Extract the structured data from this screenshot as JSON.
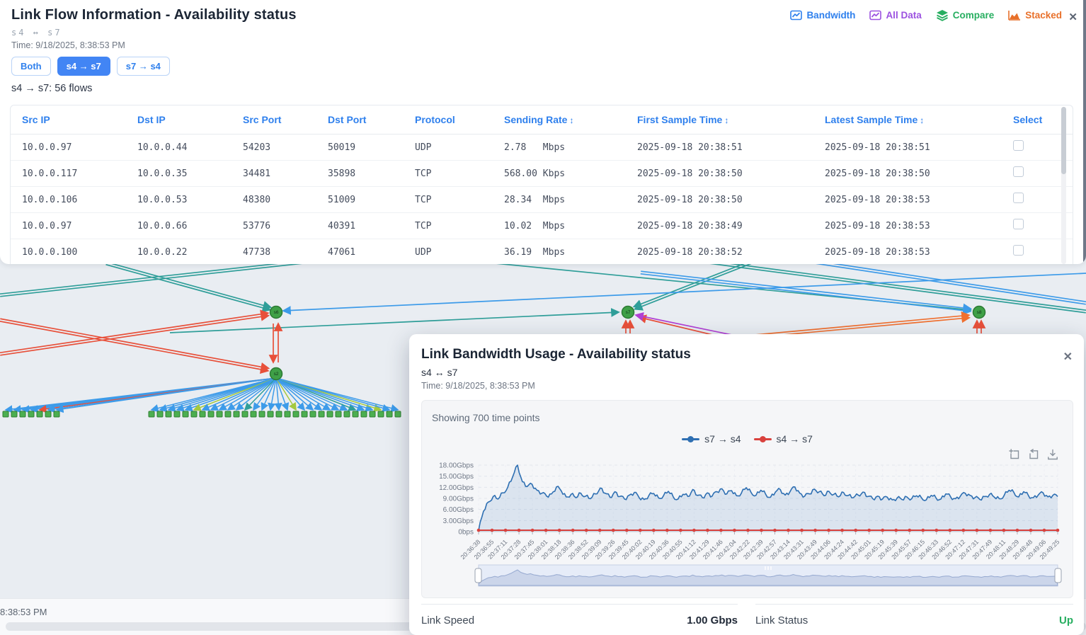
{
  "flow_panel": {
    "title": "Link Flow Information - Availability status",
    "subtitle": "s4 ↔ s7",
    "time": "Time: 9/18/2025, 8:38:53 PM",
    "direction_buttons": [
      {
        "label": "Both",
        "active": false
      },
      {
        "label": "s4 → s7",
        "active": true
      },
      {
        "label": "s7 → s4",
        "active": false
      }
    ],
    "flow_count": "s4 → s7: 56 flows",
    "toolbar": {
      "items": [
        {
          "label": "Bandwidth",
          "icon": "line-chart-icon",
          "color": "#2f80ed"
        },
        {
          "label": "All Data",
          "icon": "line-chart-icon",
          "color": "#9b51e0"
        },
        {
          "label": "Compare",
          "icon": "layers-icon",
          "color": "#27ae60"
        },
        {
          "label": "Stacked",
          "icon": "area-chart-icon",
          "color": "#e8702a"
        }
      ],
      "close_label": "✕"
    },
    "table": {
      "columns": [
        {
          "label": "Src IP",
          "sort": false
        },
        {
          "label": "Dst IP",
          "sort": false
        },
        {
          "label": "Src Port",
          "sort": false
        },
        {
          "label": "Dst Port",
          "sort": false
        },
        {
          "label": "Protocol",
          "sort": false
        },
        {
          "label": "Sending Rate",
          "sort": true
        },
        {
          "label": "First Sample Time",
          "sort": true
        },
        {
          "label": "Latest Sample Time",
          "sort": true
        },
        {
          "label": "Select",
          "sort": false
        }
      ],
      "rows": [
        {
          "src_ip": "10.0.0.97",
          "dst_ip": "10.0.0.44",
          "src_port": "54203",
          "dst_port": "50019",
          "protocol": "UDP",
          "rate": "2.78   Mbps",
          "first": "2025-09-18 20:38:51",
          "latest": "2025-09-18 20:38:51"
        },
        {
          "src_ip": "10.0.0.117",
          "dst_ip": "10.0.0.35",
          "src_port": "34481",
          "dst_port": "35898",
          "protocol": "TCP",
          "rate": "568.00 Kbps",
          "first": "2025-09-18 20:38:50",
          "latest": "2025-09-18 20:38:50"
        },
        {
          "src_ip": "10.0.0.106",
          "dst_ip": "10.0.0.53",
          "src_port": "48380",
          "dst_port": "51009",
          "protocol": "TCP",
          "rate": "28.34  Mbps",
          "first": "2025-09-18 20:38:50",
          "latest": "2025-09-18 20:38:53"
        },
        {
          "src_ip": "10.0.0.97",
          "dst_ip": "10.0.0.66",
          "src_port": "53776",
          "dst_port": "40391",
          "protocol": "TCP",
          "rate": "10.02  Mbps",
          "first": "2025-09-18 20:38:49",
          "latest": "2025-09-18 20:38:53"
        },
        {
          "src_ip": "10.0.0.100",
          "dst_ip": "10.0.0.22",
          "src_port": "47738",
          "dst_port": "47061",
          "protocol": "UDP",
          "rate": "36.19  Mbps",
          "first": "2025-09-18 20:38:52",
          "latest": "2025-09-18 20:38:53"
        }
      ]
    }
  },
  "timeline": {
    "time_label": "8:38:53 PM"
  },
  "modal": {
    "title": "Link Bandwidth Usage - Availability status",
    "subtitle": "s4 ↔ s7",
    "time": "Time: 9/18/2025, 8:38:53 PM",
    "close_label": "✕",
    "footer": {
      "link_speed_label": "Link Speed",
      "link_speed_value": "1.00 Gbps",
      "link_status_label": "Link Status",
      "link_status_value": "Up",
      "status_color": "#27ae60"
    }
  },
  "chart_data": {
    "type": "line",
    "title": "Showing 700 time points",
    "time_points": 700,
    "legend_position": "top-center",
    "grid": true,
    "ylim_gbps": [
      0,
      18
    ],
    "y_ticks": [
      {
        "value": 18,
        "label": "18.00Gbps"
      },
      {
        "value": 15,
        "label": "15.00Gbps"
      },
      {
        "value": 12,
        "label": "12.00Gbps"
      },
      {
        "value": 9,
        "label": "9.00Gbps"
      },
      {
        "value": 6,
        "label": "6.00Gbps"
      },
      {
        "value": 3,
        "label": "3.00Gbps"
      },
      {
        "value": 0,
        "label": "0bps"
      }
    ],
    "x_tick_labels": [
      "20:36:38",
      "20:36:55",
      "20:37:11",
      "20:37:28",
      "20:37:45",
      "20:38:01",
      "20:38:18",
      "20:38:36",
      "20:38:52",
      "20:39:09",
      "20:39:26",
      "20:39:45",
      "20:40:02",
      "20:40:19",
      "20:40:36",
      "20:40:55",
      "20:41:12",
      "20:41:29",
      "20:41:46",
      "20:42:04",
      "20:42:22",
      "20:42:39",
      "20:42:57",
      "20:43:14",
      "20:43:31",
      "20:43:49",
      "20:44:06",
      "20:44:24",
      "20:44:42",
      "20:45:01",
      "20:45:19",
      "20:45:39",
      "20:45:57",
      "20:46:15",
      "20:46:33",
      "20:46:52",
      "20:47:12",
      "20:47:31",
      "20:47:49",
      "20:48:11",
      "20:48:29",
      "20:48:48",
      "20:49:06",
      "20:49:25"
    ],
    "series": [
      {
        "name": "s7 → s4",
        "color": "#2e6fb2",
        "area": true,
        "unit": "Gbps",
        "values_gbps": [
          0.3,
          5.5,
          8.0,
          9.5,
          8.8,
          10.5,
          12.0,
          14.8,
          18.0,
          13.5,
          12.2,
          12.8,
          11.2,
          10.4,
          9.6,
          10.2,
          12.1,
          11.0,
          9.4,
          10.1,
          9.2,
          10.4,
          9.6,
          8.9,
          10.2,
          11.8,
          10.4,
          9.3,
          10.8,
          9.5,
          8.8,
          9.9,
          10.6,
          9.2,
          8.7,
          9.8,
          10.3,
          9.1,
          9.7,
          10.9,
          9.4,
          8.8,
          10.1,
          9.5,
          11.4,
          9.8,
          9.2,
          10.5,
          9.6,
          10.8,
          11.6,
          10.2,
          11.1,
          9.7,
          10.4,
          11.9,
          10.6,
          9.8,
          11.2,
          10.1,
          9.3,
          10.7,
          11.4,
          9.9,
          10.8,
          12.1,
          10.4,
          9.6,
          10.2,
          11.5,
          10.8,
          9.7,
          10.9,
          10.1,
          9.4,
          10.6,
          9.8,
          9.2,
          9.9,
          10.7,
          9.5,
          8.9,
          9.6,
          8.8,
          9.3,
          8.6,
          9.1,
          8.7,
          9.4,
          8.9,
          9.7,
          9.2,
          8.6,
          9.8,
          9.1,
          8.8,
          10.2,
          9.4,
          8.9,
          9.6,
          10.4,
          9.8,
          9.2,
          8.7,
          9.5,
          10.1,
          9.3,
          8.9,
          9.8,
          11.2,
          10.6,
          9.4,
          10.8,
          9.7,
          9.2,
          9.9,
          10.5,
          9.4,
          9.8,
          9.5
        ]
      },
      {
        "name": "s4 → s7",
        "color": "#d9413d",
        "unit": "Gbps",
        "constant_gbps": 0.05,
        "note": "flat near zero with point markers"
      }
    ]
  },
  "topology": {
    "nodes": [
      {
        "label": "s6"
      },
      {
        "label": "s2"
      },
      {
        "label": "s7"
      },
      {
        "label": "s8"
      }
    ],
    "colors": {
      "switch_fill": "#3fa047",
      "switch_border": "#2c7a33",
      "host_fill": "#4caf50",
      "host_border": "#2e7d32",
      "flow_blue": "#3d9be9",
      "flow_teal": "#2f9e99",
      "flow_red": "#e8503a",
      "flow_orange": "#f07030",
      "flow_purple": "#b13fd4",
      "flow_green": "#a4c93f"
    }
  }
}
